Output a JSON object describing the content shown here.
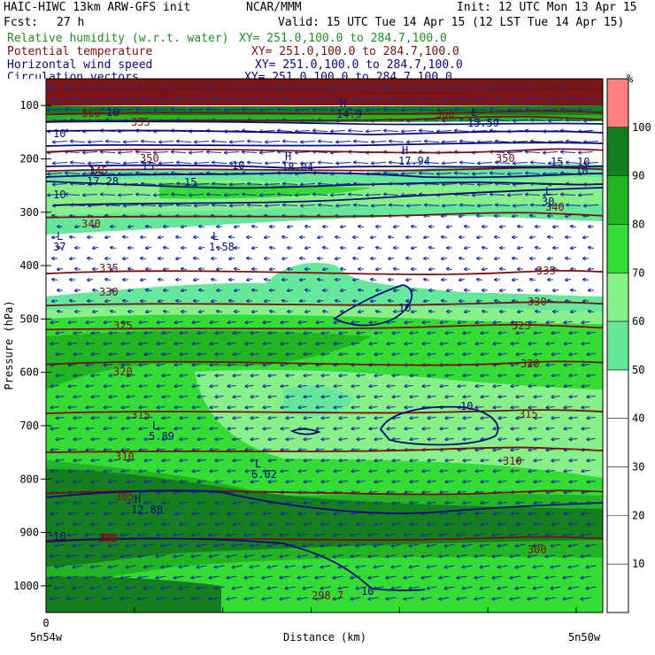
{
  "header": {
    "title": "HAIC-HIWC 13km ARW-GFS init",
    "org": "NCAR/MMM",
    "init": "Init: 12 UTC Mon 13 Apr 15",
    "fcst_label": "Fcst:",
    "fcst_value": "27 h",
    "valid": "Valid: 15 UTC Tue 14 Apr 15 (12 LST Tue 14 Apr 15)"
  },
  "fields": [
    {
      "name": "Relative humidity (w.r.t. water)",
      "xy": "XY= 251.0,100.0 to 284.7,100.0",
      "color": "#1f8f1f"
    },
    {
      "name": "Potential temperature",
      "xy": "XY= 251.0,100.0 to 284.7,100.0",
      "color": "#7a1010"
    },
    {
      "name": "Horizontal wind speed",
      "xy": "XY= 251.0,100.0 to 284.7,100.0",
      "color": "#0a0a7a"
    },
    {
      "name": "Circulation vectors",
      "xy": "XY= 251.0,100.0 to 284.7,100.0",
      "color": "#0a0a7a"
    }
  ],
  "chart_data": {
    "type": "heatmap",
    "ylabel": "Pressure (hPa)",
    "xlabel": "Distance (km)",
    "y_ticks": [
      100,
      200,
      300,
      400,
      500,
      600,
      700,
      800,
      900,
      1000
    ],
    "ylim": [
      50,
      1050
    ],
    "x_ticks": [
      "0"
    ],
    "x_endpoints": [
      "5n54w",
      "5n50w"
    ],
    "colorbar": {
      "unit": "%",
      "ticks": [
        10,
        20,
        30,
        40,
        50,
        60,
        70,
        80,
        90,
        100
      ],
      "bins": [
        {
          "from": 0,
          "to": 50,
          "color": "#ffffff"
        },
        {
          "from": 50,
          "to": 60,
          "color": "#66e89a"
        },
        {
          "from": 60,
          "to": 70,
          "color": "#88f088"
        },
        {
          "from": 70,
          "to": 80,
          "color": "#33dd33"
        },
        {
          "from": 80,
          "to": 90,
          "color": "#22b522"
        },
        {
          "from": 90,
          "to": 100,
          "color": "#157f1f"
        },
        {
          "from": 100,
          "to": 110,
          "color": "#ff8080"
        }
      ]
    },
    "theta_contours": [
      {
        "value": 385,
        "p": 70
      },
      {
        "value": 360,
        "p": 112
      },
      {
        "value": 355,
        "p": 125
      },
      {
        "value": 350,
        "p": 182
      },
      {
        "value": 345,
        "p": 218
      },
      {
        "value": 340,
        "p": 305
      },
      {
        "value": 335,
        "p": 410
      },
      {
        "value": 330,
        "p": 470
      },
      {
        "value": 325,
        "p": 515
      },
      {
        "value": 320,
        "p": 580
      },
      {
        "value": 315,
        "p": 672
      },
      {
        "value": 310,
        "p": 745
      },
      {
        "value": 305,
        "p": 822
      },
      {
        "value": 300,
        "p": 910
      }
    ],
    "theta_labels": [
      "385",
      "360",
      "355",
      "350",
      "345",
      "340",
      "335",
      "330",
      "325",
      "320",
      "315",
      "310",
      "305",
      "300",
      "360",
      "350",
      "340",
      "335",
      "330",
      "325",
      "320",
      "315",
      "310",
      "300",
      "300",
      "298.7"
    ],
    "wind_labels": [
      "10",
      "15",
      "10",
      "15",
      "10",
      "15",
      "10",
      "10",
      "10",
      "10",
      "10",
      "10",
      "10"
    ],
    "extrema": [
      {
        "type": "H",
        "value": "14.9"
      },
      {
        "type": "H",
        "value": "18.04"
      },
      {
        "type": "H",
        "value": "17.94"
      },
      {
        "type": "L",
        "value": "15.59"
      },
      {
        "type": "L",
        "value": "17.28"
      },
      {
        "type": "L",
        "value": "37"
      },
      {
        "type": "L",
        "value": "1.58"
      },
      {
        "type": "L",
        "value": "5.89"
      },
      {
        "type": "L",
        "value": "6.02"
      },
      {
        "type": "H",
        "value": "12.88"
      },
      {
        "type": "L",
        "value": "30"
      }
    ]
  }
}
